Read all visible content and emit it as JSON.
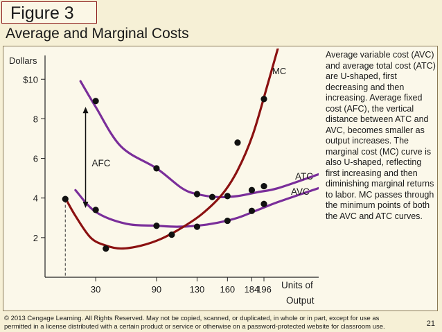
{
  "figure_label": "Figure  3",
  "title": "Average and Marginal Costs",
  "annotation_text": "Average variable cost (AVC) and average total cost (ATC) are U-shaped, first decreasing and then increasing. Average fixed cost (AFC), the vertical distance between ATC and AVC, becomes smaller as output increases. The marginal cost (MC) curve is also U-shaped, reflecting first increasing and then diminishing marginal returns to labor. MC passes through the minimum points of both the AVC and ATC curves.",
  "footer_text": "© 2013 Cengage Learning. All Rights Reserved. May not be copied, scanned, or duplicated, in whole or in part, except for use as permitted in a license distributed with a certain product or service or otherwise on a password-protected website for classroom use.",
  "page_number": "21",
  "colors": {
    "background": "#f6f0d6",
    "frame": "#8b1a1a",
    "purple": "#7a2e9a",
    "maroon": "#8b1111",
    "dot": "#111111"
  },
  "chart_data": {
    "type": "line",
    "ylabel": "Dollars",
    "xlabel_line1": "Units of",
    "xlabel_line2": "Output",
    "y_ticks": [
      {
        "value": 10,
        "label": "$10"
      },
      {
        "value": 8,
        "label": "8"
      },
      {
        "value": 6,
        "label": "6"
      },
      {
        "value": 4,
        "label": "4"
      },
      {
        "value": 2,
        "label": "2"
      }
    ],
    "x_ticks": [
      {
        "value": 30,
        "label": "30"
      },
      {
        "value": 90,
        "label": "90"
      },
      {
        "value": 130,
        "label": "130"
      },
      {
        "value": 160,
        "label": "160"
      },
      {
        "value": 184,
        "label": "184"
      },
      {
        "value": 196,
        "label": "196"
      }
    ],
    "series": [
      {
        "name": "ATC",
        "color": "#7a2e9a",
        "curve": [
          [
            15,
            9.9
          ],
          [
            30,
            8.6
          ],
          [
            55,
            6.6
          ],
          [
            90,
            5.5
          ],
          [
            115,
            4.5
          ],
          [
            130,
            4.2
          ],
          [
            150,
            4.05
          ],
          [
            170,
            4.1
          ],
          [
            190,
            4.3
          ],
          [
            210,
            4.5
          ],
          [
            250,
            5.2
          ]
        ],
        "markers": [
          [
            30,
            8.9
          ],
          [
            90,
            5.5
          ],
          [
            130,
            4.2
          ],
          [
            145,
            4.05
          ],
          [
            160,
            4.1
          ],
          [
            184,
            4.4
          ],
          [
            196,
            4.6
          ]
        ]
      },
      {
        "name": "AVC",
        "color": "#7a2e9a",
        "curve": [
          [
            10,
            4.4
          ],
          [
            30,
            3.3
          ],
          [
            60,
            2.7
          ],
          [
            90,
            2.6
          ],
          [
            110,
            2.55
          ],
          [
            130,
            2.6
          ],
          [
            150,
            2.75
          ],
          [
            170,
            3.0
          ],
          [
            190,
            3.4
          ],
          [
            210,
            3.8
          ],
          [
            250,
            4.5
          ]
        ],
        "markers": [
          [
            30,
            3.4
          ],
          [
            90,
            2.6
          ],
          [
            130,
            2.55
          ],
          [
            160,
            2.85
          ],
          [
            184,
            3.35
          ],
          [
            196,
            3.7
          ]
        ]
      },
      {
        "name": "MC",
        "color": "#8b1111",
        "curve": [
          [
            0,
            4.0
          ],
          [
            10,
            3.1
          ],
          [
            25,
            2.0
          ],
          [
            40,
            1.6
          ],
          [
            55,
            1.45
          ],
          [
            75,
            1.6
          ],
          [
            95,
            1.95
          ],
          [
            115,
            2.5
          ],
          [
            135,
            3.2
          ],
          [
            155,
            4.2
          ],
          [
            170,
            5.4
          ],
          [
            185,
            7.2
          ],
          [
            200,
            9.8
          ],
          [
            210,
            11.6
          ]
        ],
        "markers": [
          [
            0,
            3.95
          ],
          [
            40,
            1.45
          ],
          [
            105,
            2.15
          ],
          [
            170,
            6.8
          ],
          [
            196,
            9.0
          ]
        ]
      }
    ],
    "afc_label": "AFC",
    "afc_arrow": {
      "x": 20,
      "y_top": 8.6,
      "y_bottom": 3.5
    },
    "dashed_guide_x": 0,
    "xlim": [
      -20,
      250
    ],
    "ylim": [
      0,
      11.2
    ]
  }
}
